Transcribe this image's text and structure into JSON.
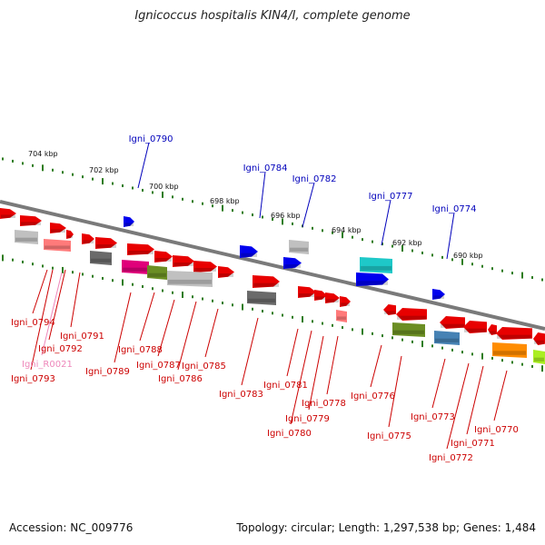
{
  "title": "Ignicoccus hospitalis KIN4/I, complete genome",
  "footer": {
    "accession": "Accession: NC_009776",
    "stats": "Topology: circular; Length: 1,297,538 bp; Genes: 1,484"
  },
  "scale_labels": [
    "704 kbp",
    "702 kbp",
    "700 kbp",
    "698 kbp",
    "696 kbp",
    "694 kbp",
    "692 kbp",
    "690 kbp"
  ],
  "labels_top": [
    "Igni_0790",
    "Igni_0784",
    "Igni_0782",
    "Igni_0777",
    "Igni_0774"
  ],
  "labels_bottom": [
    "Igni_0794",
    "Igni_0791",
    "Igni_0792",
    "Igni_R0021",
    "Igni_0793",
    "Igni_0789",
    "Igni_0788",
    "Igni_0787",
    "Igni_0786",
    "Igni_0785",
    "Igni_0783",
    "Igni_0781",
    "Igni_0778",
    "Igni_0779",
    "Igni_0780",
    "Igni_0776",
    "Igni_0775",
    "Igni_0773",
    "Igni_0771",
    "Igni_0772",
    "Igni_0770"
  ],
  "colors": {
    "backbone": "#7a7a7a",
    "tick": "#2e7d1e",
    "label_top": "#0000bb",
    "label_bottom": "#cc0000",
    "label_rna": "#ee88bb",
    "gene_red": "#e80000",
    "gene_blue": "#0000ee",
    "gene_gray": "#c0c0c0",
    "gene_darkgray": "#6a6a6a",
    "gene_magenta": "#e0007a",
    "gene_olive": "#6b8e23",
    "gene_cyan": "#1ec8c8",
    "gene_steel": "#4682b4",
    "gene_orange": "#ff8c00",
    "gene_lime": "#aaee22",
    "gene_pink": "#ff7a7a"
  }
}
